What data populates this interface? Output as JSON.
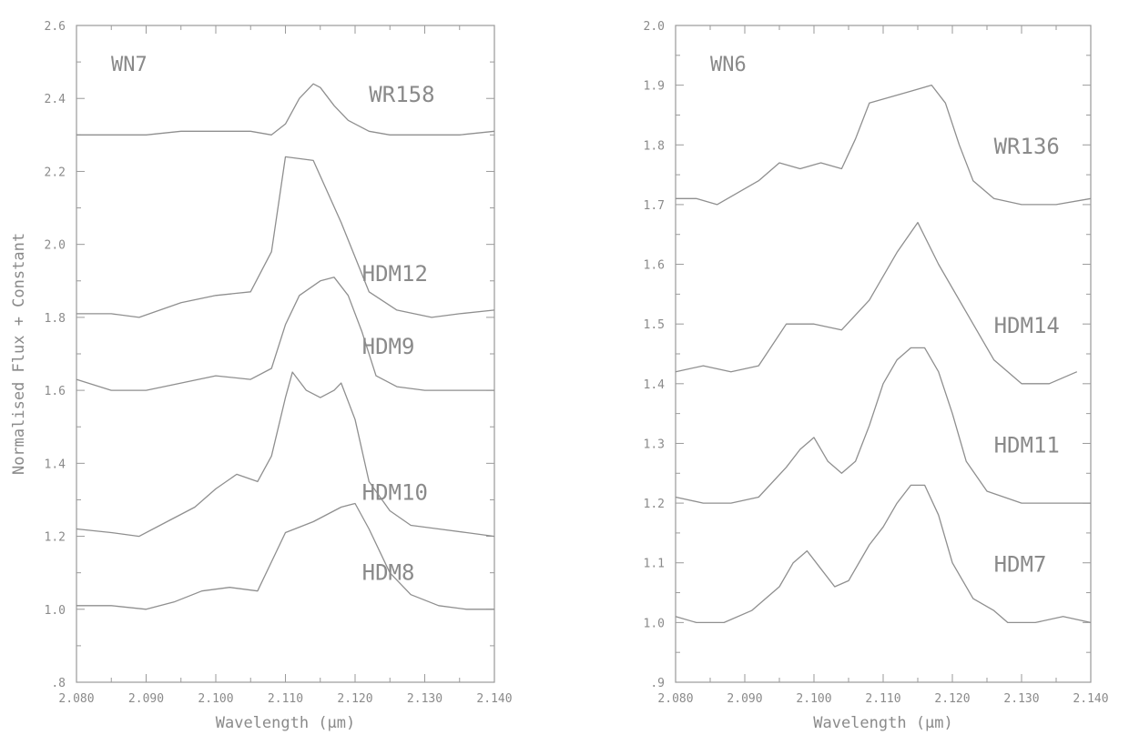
{
  "chart_data": [
    {
      "type": "line",
      "title": "WN7",
      "xlabel": "Wavelength (μm)",
      "ylabel": "Normalised Flux + Constant",
      "xlim": [
        2.08,
        2.14
      ],
      "ylim": [
        0.8,
        2.6
      ],
      "x_ticks": [
        2.08,
        2.09,
        2.1,
        2.11,
        2.12,
        2.13,
        2.14
      ],
      "x_tick_labels": [
        "2.080",
        "2.090",
        "2.100",
        "2.110",
        "2.120",
        "2.130",
        "2.140"
      ],
      "y_ticks": [
        0.8,
        1.0,
        1.2,
        1.4,
        1.6,
        1.8,
        2.0,
        2.2,
        2.4,
        2.6
      ],
      "y_tick_labels": [
        ".8",
        "1.0",
        "1.2",
        "1.4",
        "1.6",
        "1.8",
        "2.0",
        "2.2",
        "2.4",
        "2.6"
      ],
      "grid": false,
      "series": [
        {
          "name": "WR158",
          "label_at": [
            2.122,
            2.39
          ],
          "points": [
            [
              2.08,
              2.3
            ],
            [
              2.085,
              2.3
            ],
            [
              2.09,
              2.3
            ],
            [
              2.095,
              2.31
            ],
            [
              2.1,
              2.31
            ],
            [
              2.105,
              2.31
            ],
            [
              2.108,
              2.3
            ],
            [
              2.11,
              2.33
            ],
            [
              2.112,
              2.4
            ],
            [
              2.114,
              2.44
            ],
            [
              2.115,
              2.43
            ],
            [
              2.117,
              2.38
            ],
            [
              2.119,
              2.34
            ],
            [
              2.122,
              2.31
            ],
            [
              2.125,
              2.3
            ],
            [
              2.13,
              2.3
            ],
            [
              2.135,
              2.3
            ],
            [
              2.14,
              2.31
            ]
          ]
        },
        {
          "name": "HDM12",
          "label_at": [
            2.121,
            1.9
          ],
          "points": [
            [
              2.08,
              1.81
            ],
            [
              2.085,
              1.81
            ],
            [
              2.089,
              1.8
            ],
            [
              2.095,
              1.84
            ],
            [
              2.1,
              1.86
            ],
            [
              2.105,
              1.87
            ],
            [
              2.108,
              1.98
            ],
            [
              2.11,
              2.24
            ],
            [
              2.114,
              2.23
            ],
            [
              2.118,
              2.06
            ],
            [
              2.122,
              1.87
            ],
            [
              2.126,
              1.82
            ],
            [
              2.131,
              1.8
            ],
            [
              2.135,
              1.81
            ],
            [
              2.14,
              1.82
            ]
          ]
        },
        {
          "name": "HDM9",
          "label_at": [
            2.121,
            1.7
          ],
          "points": [
            [
              2.08,
              1.63
            ],
            [
              2.085,
              1.6
            ],
            [
              2.09,
              1.6
            ],
            [
              2.095,
              1.62
            ],
            [
              2.1,
              1.64
            ],
            [
              2.105,
              1.63
            ],
            [
              2.108,
              1.66
            ],
            [
              2.11,
              1.78
            ],
            [
              2.112,
              1.86
            ],
            [
              2.115,
              1.9
            ],
            [
              2.117,
              1.91
            ],
            [
              2.119,
              1.86
            ],
            [
              2.121,
              1.76
            ],
            [
              2.123,
              1.64
            ],
            [
              2.126,
              1.61
            ],
            [
              2.13,
              1.6
            ],
            [
              2.135,
              1.6
            ],
            [
              2.14,
              1.6
            ]
          ]
        },
        {
          "name": "HDM10",
          "label_at": [
            2.121,
            1.3
          ],
          "points": [
            [
              2.08,
              1.22
            ],
            [
              2.085,
              1.21
            ],
            [
              2.089,
              1.2
            ],
            [
              2.093,
              1.24
            ],
            [
              2.097,
              1.28
            ],
            [
              2.1,
              1.33
            ],
            [
              2.103,
              1.37
            ],
            [
              2.106,
              1.35
            ],
            [
              2.108,
              1.42
            ],
            [
              2.11,
              1.58
            ],
            [
              2.111,
              1.65
            ],
            [
              2.113,
              1.6
            ],
            [
              2.115,
              1.58
            ],
            [
              2.117,
              1.6
            ],
            [
              2.118,
              1.62
            ],
            [
              2.12,
              1.52
            ],
            [
              2.122,
              1.35
            ],
            [
              2.125,
              1.27
            ],
            [
              2.128,
              1.23
            ],
            [
              2.132,
              1.22
            ],
            [
              2.136,
              1.21
            ],
            [
              2.14,
              1.2
            ]
          ]
        },
        {
          "name": "HDM8",
          "label_at": [
            2.121,
            1.08
          ],
          "points": [
            [
              2.08,
              1.01
            ],
            [
              2.085,
              1.01
            ],
            [
              2.09,
              1.0
            ],
            [
              2.094,
              1.02
            ],
            [
              2.098,
              1.05
            ],
            [
              2.102,
              1.06
            ],
            [
              2.106,
              1.05
            ],
            [
              2.108,
              1.13
            ],
            [
              2.11,
              1.21
            ],
            [
              2.114,
              1.24
            ],
            [
              2.118,
              1.28
            ],
            [
              2.12,
              1.29
            ],
            [
              2.122,
              1.22
            ],
            [
              2.125,
              1.1
            ],
            [
              2.128,
              1.04
            ],
            [
              2.132,
              1.01
            ],
            [
              2.136,
              1.0
            ],
            [
              2.14,
              1.0
            ]
          ]
        }
      ]
    },
    {
      "type": "line",
      "title": "WN6",
      "xlabel": "Wavelength (μm)",
      "ylabel": "",
      "xlim": [
        2.08,
        2.14
      ],
      "ylim": [
        0.9,
        2.0
      ],
      "x_ticks": [
        2.08,
        2.09,
        2.1,
        2.11,
        2.12,
        2.13,
        2.14
      ],
      "x_tick_labels": [
        "2.080",
        "2.090",
        "2.100",
        "2.110",
        "2.120",
        "2.130",
        "2.140"
      ],
      "y_ticks": [
        0.9,
        1.0,
        1.1,
        1.2,
        1.3,
        1.4,
        1.5,
        1.6,
        1.7,
        1.8,
        1.9,
        2.0
      ],
      "y_tick_labels": [
        ".9",
        "1.0",
        "1.1",
        "1.2",
        "1.3",
        "1.4",
        "1.5",
        "1.6",
        "1.7",
        "1.8",
        "1.9",
        "2.0"
      ],
      "grid": false,
      "series": [
        {
          "name": "WR136",
          "label_at": [
            2.126,
            1.785
          ],
          "points": [
            [
              2.08,
              1.71
            ],
            [
              2.083,
              1.71
            ],
            [
              2.086,
              1.7
            ],
            [
              2.089,
              1.72
            ],
            [
              2.092,
              1.74
            ],
            [
              2.095,
              1.77
            ],
            [
              2.098,
              1.76
            ],
            [
              2.101,
              1.77
            ],
            [
              2.104,
              1.76
            ],
            [
              2.106,
              1.81
            ],
            [
              2.108,
              1.87
            ],
            [
              2.111,
              1.88
            ],
            [
              2.114,
              1.89
            ],
            [
              2.117,
              1.9
            ],
            [
              2.119,
              1.87
            ],
            [
              2.121,
              1.8
            ],
            [
              2.123,
              1.74
            ],
            [
              2.126,
              1.71
            ],
            [
              2.13,
              1.7
            ],
            [
              2.135,
              1.7
            ],
            [
              2.14,
              1.71
            ]
          ]
        },
        {
          "name": "HDM14",
          "label_at": [
            2.126,
            1.485
          ],
          "points": [
            [
              2.08,
              1.42
            ],
            [
              2.084,
              1.43
            ],
            [
              2.088,
              1.42
            ],
            [
              2.092,
              1.43
            ],
            [
              2.096,
              1.5
            ],
            [
              2.1,
              1.5
            ],
            [
              2.104,
              1.49
            ],
            [
              2.108,
              1.54
            ],
            [
              2.112,
              1.62
            ],
            [
              2.115,
              1.67
            ],
            [
              2.118,
              1.6
            ],
            [
              2.122,
              1.52
            ],
            [
              2.126,
              1.44
            ],
            [
              2.13,
              1.4
            ],
            [
              2.134,
              1.4
            ],
            [
              2.138,
              1.42
            ]
          ]
        },
        {
          "name": "HDM11",
          "label_at": [
            2.126,
            1.285
          ],
          "points": [
            [
              2.08,
              1.21
            ],
            [
              2.084,
              1.2
            ],
            [
              2.088,
              1.2
            ],
            [
              2.092,
              1.21
            ],
            [
              2.096,
              1.26
            ],
            [
              2.098,
              1.29
            ],
            [
              2.1,
              1.31
            ],
            [
              2.102,
              1.27
            ],
            [
              2.104,
              1.25
            ],
            [
              2.106,
              1.27
            ],
            [
              2.108,
              1.33
            ],
            [
              2.11,
              1.4
            ],
            [
              2.112,
              1.44
            ],
            [
              2.114,
              1.46
            ],
            [
              2.116,
              1.46
            ],
            [
              2.118,
              1.42
            ],
            [
              2.12,
              1.35
            ],
            [
              2.122,
              1.27
            ],
            [
              2.125,
              1.22
            ],
            [
              2.13,
              1.2
            ],
            [
              2.135,
              1.2
            ],
            [
              2.14,
              1.2
            ]
          ]
        },
        {
          "name": "HDM7",
          "label_at": [
            2.126,
            1.085
          ],
          "points": [
            [
              2.08,
              1.01
            ],
            [
              2.083,
              1.0
            ],
            [
              2.087,
              1.0
            ],
            [
              2.091,
              1.02
            ],
            [
              2.095,
              1.06
            ],
            [
              2.097,
              1.1
            ],
            [
              2.099,
              1.12
            ],
            [
              2.101,
              1.09
            ],
            [
              2.103,
              1.06
            ],
            [
              2.105,
              1.07
            ],
            [
              2.108,
              1.13
            ],
            [
              2.11,
              1.16
            ],
            [
              2.112,
              1.2
            ],
            [
              2.114,
              1.23
            ],
            [
              2.116,
              1.23
            ],
            [
              2.118,
              1.18
            ],
            [
              2.12,
              1.1
            ],
            [
              2.123,
              1.04
            ],
            [
              2.126,
              1.02
            ],
            [
              2.128,
              1.0
            ],
            [
              2.132,
              1.0
            ],
            [
              2.136,
              1.01
            ],
            [
              2.14,
              1.0
            ]
          ]
        }
      ]
    }
  ]
}
